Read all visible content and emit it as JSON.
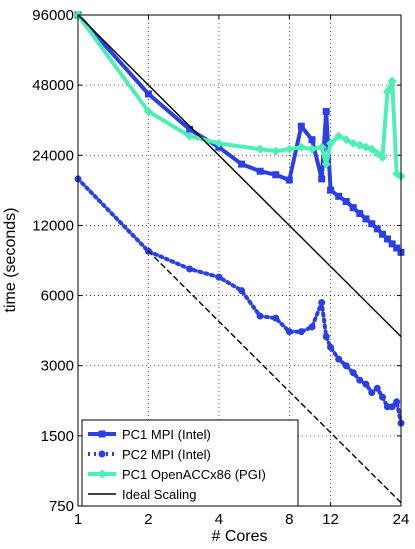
{
  "chart_data": {
    "type": "line",
    "title": "",
    "xlabel": "# Cores",
    "ylabel": "time (seconds)",
    "xscale": "log",
    "yscale": "log",
    "xlim": [
      1,
      24
    ],
    "ylim": [
      750,
      96000
    ],
    "grid": true,
    "legend_position": "bottom-left",
    "x_ticks": [
      1,
      2,
      4,
      8,
      12,
      24
    ],
    "x_tick_labels": [
      "1",
      "2",
      "4",
      "8",
      "12",
      "24"
    ],
    "y_ticks": [
      750,
      1500,
      3000,
      6000,
      12000,
      24000,
      48000,
      96000
    ],
    "y_tick_labels": [
      "750",
      "1500",
      "3000",
      "6000",
      "12000",
      "24000",
      "48000",
      "96000"
    ],
    "series": [
      {
        "name": "PC1 MPI (Intel)",
        "color": "#2b3fe8",
        "line": "solid",
        "marker": "square",
        "x": [
          1,
          2,
          3,
          4,
          5,
          6,
          7,
          8,
          9,
          10,
          11,
          11.5,
          12,
          13,
          14,
          15,
          16,
          17,
          18,
          19,
          20,
          21,
          22,
          23,
          24
        ],
        "y": [
          96000,
          44000,
          31000,
          26000,
          22000,
          20500,
          19800,
          18800,
          32000,
          28000,
          19000,
          37000,
          17000,
          16000,
          15200,
          14300,
          13500,
          12800,
          12200,
          11600,
          11000,
          10500,
          10000,
          9600,
          9200
        ]
      },
      {
        "name": "PC2 MPI (Intel)",
        "color": "#2b3fe8",
        "line": "dotted",
        "marker": "circle",
        "x": [
          1,
          2,
          3,
          4,
          5,
          6,
          7,
          8,
          9,
          10,
          11,
          11.5,
          12,
          13,
          14,
          15,
          16,
          17,
          18,
          19,
          20,
          21,
          22,
          23,
          24
        ],
        "y": [
          19000,
          9300,
          7800,
          7200,
          6300,
          4900,
          4800,
          4200,
          4200,
          4400,
          5600,
          4000,
          3600,
          3200,
          3000,
          2800,
          2600,
          2500,
          2300,
          2400,
          2200,
          2000,
          2000,
          2100,
          1700
        ]
      },
      {
        "name": "PC1 OpenACCx86 (PGI)",
        "color": "#4cf0b4",
        "line": "solid",
        "marker": "diamond",
        "x": [
          1,
          2,
          3,
          4,
          6,
          7,
          8,
          9,
          10,
          11,
          11.5,
          12,
          13,
          14,
          15,
          16,
          17,
          18,
          19,
          20,
          21,
          22,
          23,
          24
        ],
        "y": [
          96000,
          37000,
          29000,
          27000,
          25500,
          25000,
          25500,
          26000,
          25500,
          26000,
          22000,
          27000,
          29000,
          28000,
          27000,
          26500,
          26000,
          25500,
          24500,
          23500,
          45000,
          50000,
          20000,
          19500
        ]
      },
      {
        "name": "Ideal Scaling",
        "color": "#000000",
        "line": "solid",
        "marker": "none",
        "x": [
          1,
          24
        ],
        "y": [
          96000,
          4000
        ]
      },
      {
        "name": "",
        "color": "#000000",
        "line": "dashed",
        "marker": "none",
        "x": [
          2,
          24
        ],
        "y": [
          9300,
          775
        ]
      }
    ]
  }
}
